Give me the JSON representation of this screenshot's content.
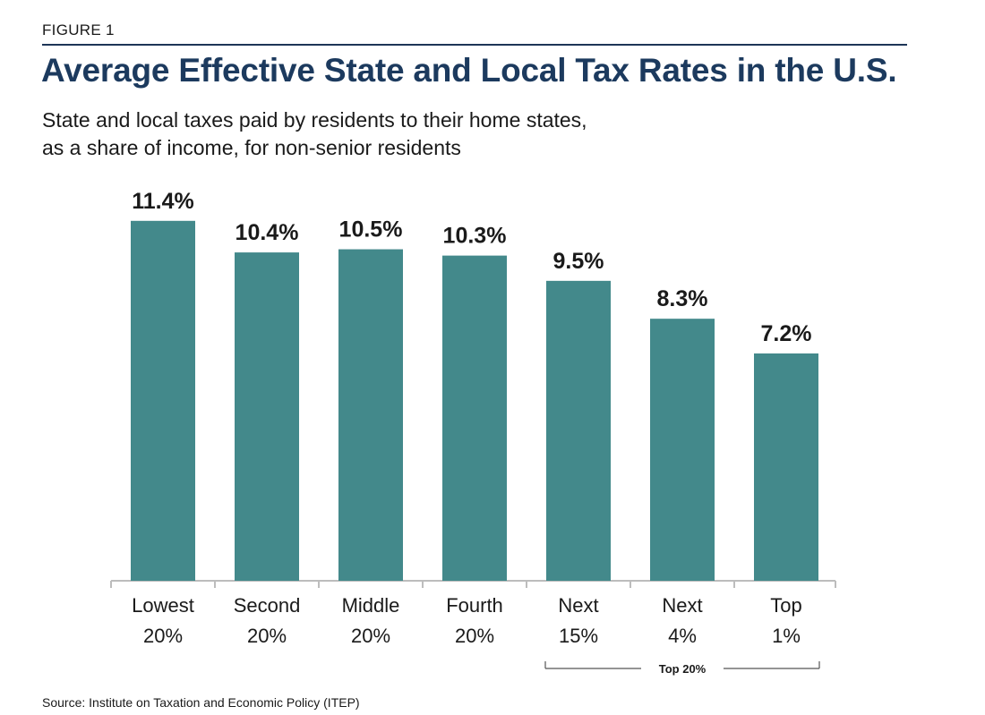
{
  "header": {
    "figure_label": "FIGURE 1",
    "title": "Average Effective State and Local Tax Rates in the U.S.",
    "subtitle_lines": [
      "State and local taxes paid by residents to their home states,",
      "as a share of income, for non-senior residents"
    ]
  },
  "colors": {
    "bar": "#43898b",
    "title": "#1c3a5e",
    "rule": "#1d3557",
    "text": "#1a1a1a",
    "axis": "#bdbdbd"
  },
  "chart_data": {
    "type": "bar",
    "title": "Average Effective State and Local Tax Rates in the U.S.",
    "subtitle": "State and local taxes paid by residents to their home states, as a share of income, for non-senior residents",
    "categories": [
      [
        "Lowest",
        "20%"
      ],
      [
        "Second",
        "20%"
      ],
      [
        "Middle",
        "20%"
      ],
      [
        "Fourth",
        "20%"
      ],
      [
        "Next",
        "15%"
      ],
      [
        "Next",
        "4%"
      ],
      [
        "Top",
        "1%"
      ]
    ],
    "values": [
      11.4,
      10.4,
      10.5,
      10.3,
      9.5,
      8.3,
      7.2
    ],
    "data_labels": [
      "11.4%",
      "10.4%",
      "10.5%",
      "10.3%",
      "9.5%",
      "8.3%",
      "7.2%"
    ],
    "ylim": [
      0,
      12
    ],
    "grid": false,
    "xlabel": "",
    "ylabel": "",
    "group_annotation": {
      "label": "Top 20%",
      "from_index": 4,
      "to_index": 6
    }
  },
  "footer": {
    "source": "Source: Institute on Taxation and Economic Policy (ITEP)"
  }
}
